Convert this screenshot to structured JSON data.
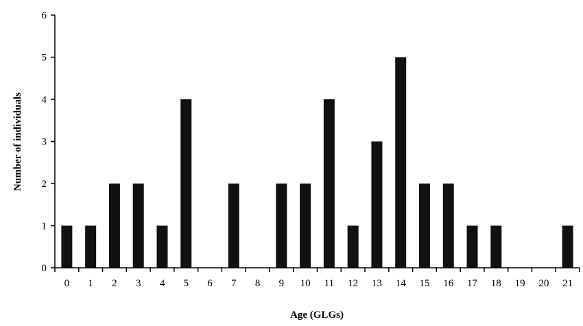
{
  "chart_data": {
    "type": "bar",
    "title": "",
    "xlabel": "Age (GLGs)",
    "ylabel": "Number of individuals",
    "categories": [
      "0",
      "1",
      "2",
      "3",
      "4",
      "5",
      "6",
      "7",
      "8",
      "9",
      "10",
      "11",
      "12",
      "13",
      "14",
      "15",
      "16",
      "17",
      "18",
      "19",
      "20",
      "21"
    ],
    "values": [
      1,
      1,
      2,
      2,
      1,
      4,
      0,
      2,
      0,
      2,
      2,
      4,
      1,
      3,
      5,
      2,
      2,
      1,
      1,
      0,
      0,
      1
    ],
    "ylim": [
      0,
      6
    ],
    "yticks": [
      0,
      1,
      2,
      3,
      4,
      5,
      6
    ],
    "grid": false,
    "legend": "none",
    "bar_color": "#111111"
  }
}
